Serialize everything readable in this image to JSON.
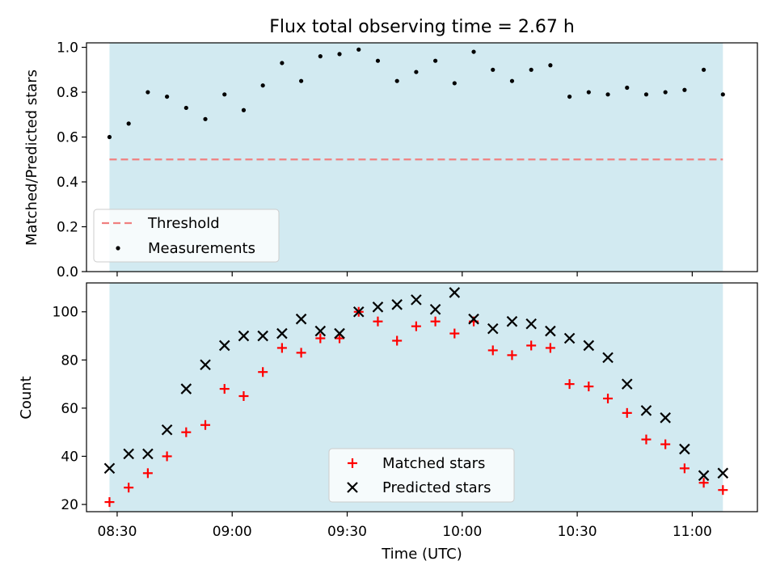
{
  "chart_data": [
    {
      "type": "scatter",
      "title": "Flux total observing time = 2.67 h",
      "xlabel": "",
      "ylabel": "Matched/Predicted stars",
      "ylim": [
        0,
        1.02
      ],
      "yticks": [
        "0.0",
        "0.2",
        "0.4",
        "0.6",
        "0.8",
        "1.0"
      ],
      "xlim": [
        "08:22",
        "11:17"
      ],
      "xticks": [
        "08:30",
        "09:00",
        "09:30",
        "10:00",
        "10:30",
        "11:00"
      ],
      "xtick_labels_shown": false,
      "shaded_span": [
        "08:28",
        "11:08"
      ],
      "shade_color": "#add8e6",
      "legend_position": "lower left",
      "threshold": {
        "name": "Threshold",
        "y": 0.5,
        "color": "#f08080",
        "style": "dashed"
      },
      "series": [
        {
          "name": "Measurements",
          "color": "#000000",
          "marker": "dot",
          "x": [
            "08:28",
            "08:33",
            "08:38",
            "08:43",
            "08:48",
            "08:53",
            "08:58",
            "09:03",
            "09:08",
            "09:13",
            "09:18",
            "09:23",
            "09:28",
            "09:33",
            "09:38",
            "09:43",
            "09:48",
            "09:53",
            "09:58",
            "10:03",
            "10:08",
            "10:13",
            "10:18",
            "10:23",
            "10:28",
            "10:33",
            "10:38",
            "10:43",
            "10:48",
            "10:53",
            "10:58",
            "11:03",
            "11:08"
          ],
          "y": [
            0.6,
            0.66,
            0.8,
            0.78,
            0.73,
            0.68,
            0.79,
            0.72,
            0.83,
            0.93,
            0.85,
            0.96,
            0.97,
            0.99,
            0.94,
            0.85,
            0.89,
            0.94,
            0.84,
            0.98,
            0.9,
            0.85,
            0.9,
            0.92,
            0.78,
            0.8,
            0.79,
            0.82,
            0.79,
            0.8,
            0.81,
            0.9,
            0.79
          ]
        }
      ]
    },
    {
      "type": "scatter",
      "title": "",
      "xlabel": "Time (UTC)",
      "ylabel": "Count",
      "ylim": [
        17,
        112
      ],
      "yticks": [
        "20",
        "40",
        "60",
        "80",
        "100"
      ],
      "xlim": [
        "08:22",
        "11:17"
      ],
      "xticks": [
        "08:30",
        "09:00",
        "09:30",
        "10:00",
        "10:30",
        "11:00"
      ],
      "shaded_span": [
        "08:28",
        "11:08"
      ],
      "shade_color": "#add8e6",
      "legend_position": "lower center",
      "series": [
        {
          "name": "Matched stars",
          "color": "#ff0000",
          "marker": "plus",
          "x": [
            "08:28",
            "08:33",
            "08:38",
            "08:43",
            "08:48",
            "08:53",
            "08:58",
            "09:03",
            "09:08",
            "09:13",
            "09:18",
            "09:23",
            "09:28",
            "09:33",
            "09:38",
            "09:43",
            "09:48",
            "09:53",
            "09:58",
            "10:03",
            "10:08",
            "10:13",
            "10:18",
            "10:23",
            "10:28",
            "10:33",
            "10:38",
            "10:43",
            "10:48",
            "10:53",
            "10:58",
            "11:03",
            "11:08"
          ],
          "y": [
            21,
            27,
            33,
            40,
            50,
            53,
            68,
            65,
            75,
            85,
            83,
            89,
            89,
            100,
            96,
            88,
            94,
            96,
            91,
            96,
            84,
            82,
            86,
            85,
            70,
            69,
            64,
            58,
            47,
            45,
            35,
            29,
            26
          ]
        },
        {
          "name": "Predicted stars",
          "color": "#000000",
          "marker": "x",
          "x": [
            "08:28",
            "08:33",
            "08:38",
            "08:43",
            "08:48",
            "08:53",
            "08:58",
            "09:03",
            "09:08",
            "09:13",
            "09:18",
            "09:23",
            "09:28",
            "09:33",
            "09:38",
            "09:43",
            "09:48",
            "09:53",
            "09:58",
            "10:03",
            "10:08",
            "10:13",
            "10:18",
            "10:23",
            "10:28",
            "10:33",
            "10:38",
            "10:43",
            "10:48",
            "10:53",
            "10:58",
            "11:03",
            "11:08"
          ],
          "y": [
            35,
            41,
            41,
            51,
            68,
            78,
            86,
            90,
            90,
            91,
            97,
            92,
            91,
            100,
            102,
            103,
            105,
            101,
            108,
            97,
            93,
            96,
            95,
            92,
            89,
            86,
            81,
            70,
            59,
            56,
            43,
            32,
            33
          ]
        }
      ]
    }
  ]
}
